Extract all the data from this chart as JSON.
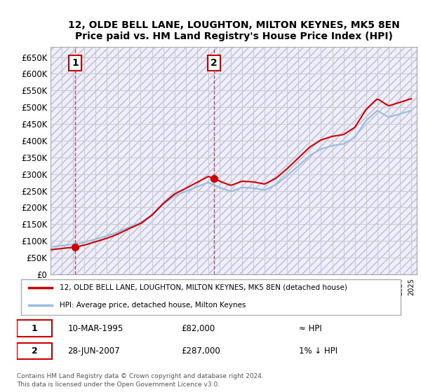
{
  "title": "12, OLDE BELL LANE, LOUGHTON, MILTON KEYNES, MK5 8EN",
  "subtitle": "Price paid vs. HM Land Registry's House Price Index (HPI)",
  "ylim": [
    0,
    680000
  ],
  "yticks": [
    0,
    50000,
    100000,
    150000,
    200000,
    250000,
    300000,
    350000,
    400000,
    450000,
    500000,
    550000,
    600000,
    650000
  ],
  "ytick_labels": [
    "£0",
    "£50K",
    "£100K",
    "£150K",
    "£200K",
    "£250K",
    "£300K",
    "£350K",
    "£400K",
    "£450K",
    "£500K",
    "£550K",
    "£600K",
    "£650K"
  ],
  "sale1_date": 1995.19,
  "sale1_price": 82000,
  "sale1_label": "1",
  "sale2_date": 2007.49,
  "sale2_price": 287000,
  "sale2_label": "2",
  "red_line_color": "#cc0000",
  "blue_line_color": "#6699cc",
  "hpi_line_color": "#99bbdd",
  "grid_color": "#cccccc",
  "bg_color": "#eeeeff",
  "hatch_color": "#ccccdd",
  "legend_label1": "12, OLDE BELL LANE, LOUGHTON, MILTON KEYNES, MK5 8EN (detached house)",
  "legend_label2": "HPI: Average price, detached house, Milton Keynes",
  "table_row1": [
    "1",
    "10-MAR-1995",
    "£82,000",
    "≈ HPI"
  ],
  "table_row2": [
    "2",
    "28-JUN-2007",
    "£287,000",
    "1% ↓ HPI"
  ],
  "footnote": "Contains HM Land Registry data © Crown copyright and database right 2024.\nThis data is licensed under the Open Government Licence v3.0.",
  "xmin": 1993,
  "xmax": 2025.5
}
